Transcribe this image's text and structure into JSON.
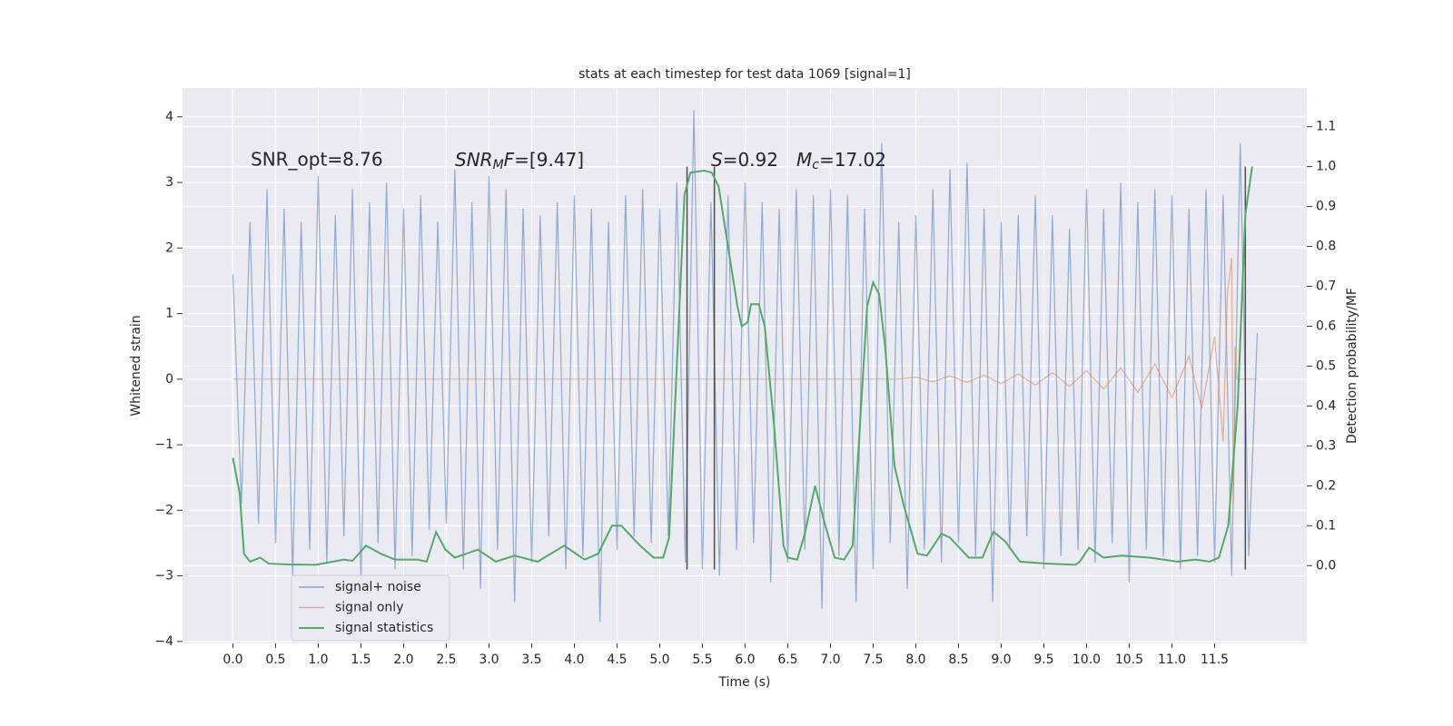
{
  "chart_data": {
    "type": "line",
    "title": "stats at each timestep for test data 1069 [signal=1]",
    "xlabel": "Time (s)",
    "ylabel": "Whitened strain",
    "y2label": "Detection probability/MF",
    "annotations": [
      "SNR_opt=8.76",
      [
        "SNR",
        "M",
        "F",
        "=[9.47]"
      ],
      [
        "S",
        "=0.92"
      ],
      [
        "M",
        "c",
        "=17.02"
      ]
    ],
    "xlim": [
      -0.59,
      12.58
    ],
    "ylim": [
      -4.03,
      4.44
    ],
    "y2lim": [
      -0.195,
      1.197
    ],
    "xticks": [
      {
        "value": 0,
        "label": "0.0"
      },
      {
        "value": 0.5,
        "label": "0.5"
      },
      {
        "value": 1,
        "label": "1.0"
      },
      {
        "value": 1.5,
        "label": "1.5"
      },
      {
        "value": 2,
        "label": "2.0"
      },
      {
        "value": 2.5,
        "label": "2.5"
      },
      {
        "value": 3,
        "label": "3.0"
      },
      {
        "value": 3.5,
        "label": "3.5"
      },
      {
        "value": 4,
        "label": "4.0"
      },
      {
        "value": 4.5,
        "label": "4.5"
      },
      {
        "value": 5,
        "label": "5.0"
      },
      {
        "value": 5.5,
        "label": "5.5"
      },
      {
        "value": 6,
        "label": "6.0"
      },
      {
        "value": 6.5,
        "label": "6.5"
      },
      {
        "value": 7,
        "label": "7.0"
      },
      {
        "value": 7.5,
        "label": "7.5"
      },
      {
        "value": 8,
        "label": "8.0"
      },
      {
        "value": 8.5,
        "label": "8.5"
      },
      {
        "value": 9,
        "label": "9.0"
      },
      {
        "value": 9.5,
        "label": "9.5"
      },
      {
        "value": 10,
        "label": "10.0"
      },
      {
        "value": 10.5,
        "label": "10.5"
      },
      {
        "value": 11,
        "label": "11.0"
      },
      {
        "value": 11.5,
        "label": "11.5"
      }
    ],
    "yticks": [
      {
        "value": -4,
        "label": "−4"
      },
      {
        "value": -3,
        "label": "−3"
      },
      {
        "value": -2,
        "label": "−2"
      },
      {
        "value": -1,
        "label": "−1"
      },
      0,
      1,
      2,
      3,
      4
    ],
    "y2ticks": [
      {
        "value": 0,
        "label": "0.0"
      },
      {
        "value": 0.1,
        "label": "0.1"
      },
      {
        "value": 0.2,
        "label": "0.2"
      },
      {
        "value": 0.3,
        "label": "0.3"
      },
      {
        "value": 0.4,
        "label": "0.4"
      },
      {
        "value": 0.5,
        "label": "0.5"
      },
      {
        "value": 0.6,
        "label": "0.6"
      },
      {
        "value": 0.7,
        "label": "0.7"
      },
      {
        "value": 0.8,
        "label": "0.8"
      },
      {
        "value": 0.9,
        "label": "0.9"
      },
      {
        "value": 1,
        "label": "1.0"
      },
      {
        "value": 1.1,
        "label": "1.1"
      }
    ],
    "grid": true,
    "legend": "lower left",
    "vlines": {
      "x": [
        5.32,
        5.64,
        11.86
      ],
      "y2": [
        -0.01,
        1.0
      ],
      "color": "#333333"
    },
    "series": [
      {
        "name": "signal+ noise",
        "color": "#4c72b0",
        "x": [
          0,
          0.1,
          0.2,
          0.3,
          0.4,
          0.5,
          0.6,
          0.7,
          0.8,
          0.9,
          1,
          1.1,
          1.2,
          1.3,
          1.4,
          1.5,
          1.6,
          1.7,
          1.8,
          1.9,
          2,
          2.1,
          2.2,
          2.3,
          2.4,
          2.5,
          2.6,
          2.7,
          2.8,
          2.9,
          3,
          3.1,
          3.2,
          3.3,
          3.4,
          3.5,
          3.6,
          3.7,
          3.8,
          3.9,
          4,
          4.1,
          4.2,
          4.3,
          4.4,
          4.5,
          4.6,
          4.7,
          4.8,
          4.9,
          5,
          5.1,
          5.2,
          5.3,
          5.4,
          5.5,
          5.6,
          5.7,
          5.8,
          5.9,
          6,
          6.1,
          6.2,
          6.3,
          6.4,
          6.5,
          6.6,
          6.7,
          6.8,
          6.9,
          7,
          7.1,
          7.2,
          7.3,
          7.4,
          7.5,
          7.6,
          7.7,
          7.8,
          7.9,
          8,
          8.1,
          8.2,
          8.3,
          8.4,
          8.5,
          8.6,
          8.7,
          8.8,
          8.9,
          9,
          9.1,
          9.2,
          9.3,
          9.4,
          9.5,
          9.6,
          9.7,
          9.8,
          9.9,
          10,
          10.1,
          10.2,
          10.3,
          10.4,
          10.5,
          10.6,
          10.7,
          10.8,
          10.9,
          11,
          11.1,
          11.2,
          11.3,
          11.4,
          11.5,
          11.6,
          11.7,
          11.8,
          11.9,
          12
        ],
        "values": [
          1.6,
          -1.9,
          2.4,
          -2.2,
          2.9,
          -2.5,
          2.6,
          -3.0,
          2.4,
          -2.6,
          3.1,
          -2.8,
          2.5,
          -2.4,
          2.9,
          -3.1,
          2.7,
          -2.5,
          3.0,
          -2.9,
          2.6,
          -2.7,
          2.8,
          -2.3,
          2.4,
          -2.2,
          3.2,
          -2.9,
          2.7,
          -3.2,
          3.1,
          -2.6,
          2.9,
          -3.4,
          2.6,
          -2.8,
          2.5,
          -2.4,
          2.7,
          -2.9,
          2.8,
          -2.7,
          2.6,
          -3.7,
          2.4,
          -2.6,
          2.8,
          -2.4,
          2.9,
          -2.5,
          2.6,
          -2.4,
          3.0,
          -2.8,
          4.1,
          -2.9,
          2.7,
          -3.0,
          2.8,
          -2.6,
          3.0,
          -2.5,
          2.7,
          -3.1,
          2.6,
          -2.8,
          2.9,
          -2.6,
          2.8,
          -3.5,
          2.9,
          -2.7,
          2.8,
          -3.4,
          2.6,
          -2.9,
          3.6,
          -2.5,
          2.4,
          -3.2,
          2.5,
          -2.6,
          2.9,
          -2.8,
          3.2,
          -2.5,
          3.3,
          -2.7,
          2.6,
          -3.4,
          2.4,
          -2.6,
          2.5,
          -2.4,
          2.8,
          -2.9,
          2.5,
          -2.7,
          2.3,
          -2.6,
          2.9,
          -2.8,
          2.6,
          -2.5,
          3.0,
          -3.1,
          2.7,
          -2.6,
          2.9,
          -2.7,
          2.8,
          -2.9,
          2.6,
          -2.7,
          2.9,
          -2.8,
          2.8,
          -3.0,
          3.6,
          -2.7,
          0.7
        ]
      },
      {
        "name": "signal only",
        "color": "#dd8452",
        "x": [
          0,
          7.8,
          8.0,
          8.2,
          8.4,
          8.6,
          8.8,
          9.0,
          9.2,
          9.4,
          9.6,
          9.8,
          10.0,
          10.2,
          10.4,
          10.6,
          10.8,
          11.0,
          11.2,
          11.35,
          11.5,
          11.6,
          11.65,
          11.7,
          11.72,
          11.74,
          11.76,
          12.0
        ],
        "values": [
          0,
          0,
          0.03,
          -0.04,
          0.05,
          -0.05,
          0.06,
          -0.07,
          0.08,
          -0.09,
          0.1,
          -0.11,
          0.13,
          -0.15,
          0.17,
          -0.2,
          0.23,
          -0.28,
          0.35,
          -0.45,
          0.65,
          -0.95,
          1.3,
          1.85,
          -1.9,
          0.5,
          0,
          0
        ]
      },
      {
        "name": "signal statistics",
        "color": "#55a868",
        "axis": "y2",
        "x": [
          0,
          0.08,
          0.13,
          0.2,
          0.32,
          0.42,
          0.64,
          0.97,
          1.3,
          1.4,
          1.56,
          1.73,
          1.9,
          2.16,
          2.27,
          2.38,
          2.49,
          2.6,
          2.87,
          3.08,
          3.3,
          3.57,
          3.88,
          4.12,
          4.28,
          4.44,
          4.55,
          4.77,
          4.93,
          5.04,
          5.11,
          5.2,
          5.29,
          5.36,
          5.52,
          5.61,
          5.69,
          5.8,
          5.91,
          5.96,
          6.03,
          6.07,
          6.16,
          6.23,
          6.34,
          6.45,
          6.5,
          6.61,
          6.7,
          6.82,
          6.94,
          7.05,
          7.16,
          7.26,
          7.43,
          7.5,
          7.57,
          7.64,
          7.75,
          7.86,
          8.02,
          8.13,
          8.3,
          8.4,
          8.62,
          8.78,
          8.91,
          9.05,
          9.22,
          9.54,
          9.87,
          9.92,
          10.03,
          10.2,
          10.41,
          10.74,
          11.06,
          11.28,
          11.44,
          11.55,
          11.66,
          11.77,
          11.86,
          11.94
        ],
        "values": [
          0.27,
          0.18,
          0.03,
          0.01,
          0.02,
          0.005,
          0.003,
          0.002,
          0.015,
          0.012,
          0.05,
          0.03,
          0.015,
          0.015,
          0.01,
          0.084,
          0.04,
          0.02,
          0.04,
          0.01,
          0.025,
          0.01,
          0.05,
          0.015,
          0.03,
          0.1,
          0.1,
          0.05,
          0.02,
          0.02,
          0.07,
          0.5,
          0.93,
          0.985,
          0.99,
          0.985,
          0.95,
          0.8,
          0.65,
          0.6,
          0.61,
          0.655,
          0.655,
          0.6,
          0.35,
          0.05,
          0.02,
          0.015,
          0.08,
          0.2,
          0.1,
          0.02,
          0.015,
          0.05,
          0.65,
          0.71,
          0.68,
          0.55,
          0.25,
          0.15,
          0.03,
          0.025,
          0.08,
          0.07,
          0.02,
          0.02,
          0.085,
          0.06,
          0.01,
          0.005,
          0.002,
          0.01,
          0.045,
          0.02,
          0.025,
          0.02,
          0.01,
          0.015,
          0.01,
          0.02,
          0.1,
          0.4,
          0.88,
          1.0
        ]
      }
    ]
  }
}
